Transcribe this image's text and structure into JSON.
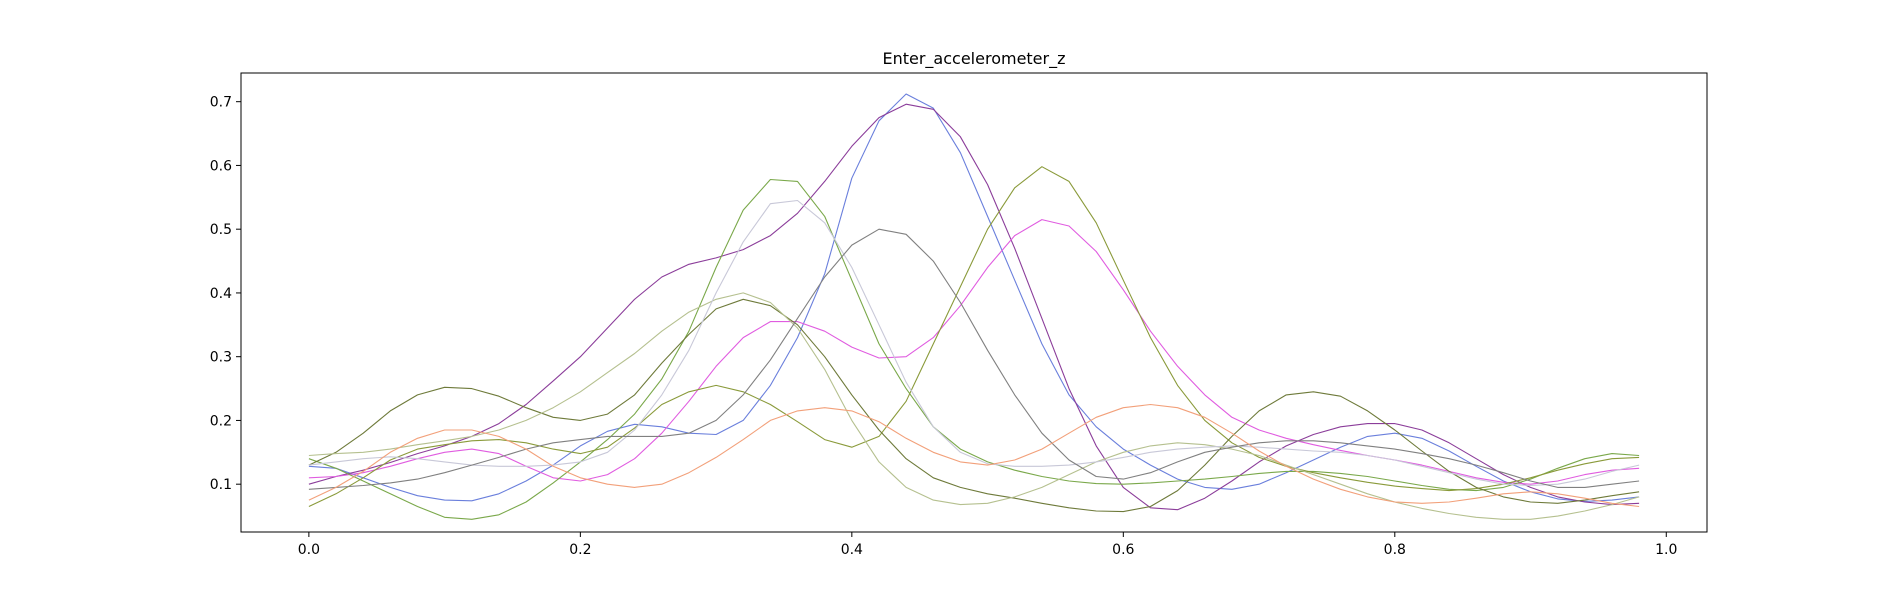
{
  "chart_data": {
    "type": "line",
    "title": "Enter_accelerometer_z",
    "xlabel": "",
    "ylabel": "",
    "xlim": [
      -0.05,
      1.03
    ],
    "ylim": [
      0.025,
      0.745
    ],
    "xticks": [
      0.0,
      0.2,
      0.4,
      0.6,
      0.8,
      1.0
    ],
    "xtick_labels": [
      "0.0",
      "0.2",
      "0.4",
      "0.6",
      "0.8",
      "1.0"
    ],
    "yticks": [
      0.1,
      0.2,
      0.3,
      0.4,
      0.5,
      0.6,
      0.7
    ],
    "ytick_labels": [
      "0.1",
      "0.2",
      "0.3",
      "0.4",
      "0.5",
      "0.6",
      "0.7"
    ],
    "grid": false,
    "legend": "none",
    "x": [
      0.0,
      0.02,
      0.04,
      0.06,
      0.08,
      0.1,
      0.12,
      0.14,
      0.16,
      0.18,
      0.2,
      0.22,
      0.24,
      0.26,
      0.28,
      0.3,
      0.32,
      0.34,
      0.36,
      0.38,
      0.4,
      0.42,
      0.44,
      0.46,
      0.48,
      0.5,
      0.52,
      0.54,
      0.56,
      0.58,
      0.6,
      0.62,
      0.64,
      0.66,
      0.68,
      0.7,
      0.72,
      0.74,
      0.76,
      0.78,
      0.8,
      0.82,
      0.84,
      0.86,
      0.88,
      0.9,
      0.92,
      0.94,
      0.96,
      0.98
    ],
    "series": [
      {
        "color": "#6a7fdc",
        "values": [
          0.128,
          0.125,
          0.11,
          0.095,
          0.082,
          0.075,
          0.074,
          0.085,
          0.105,
          0.13,
          0.16,
          0.183,
          0.194,
          0.19,
          0.18,
          0.178,
          0.2,
          0.255,
          0.33,
          0.43,
          0.58,
          0.67,
          0.712,
          0.69,
          0.62,
          0.52,
          0.42,
          0.32,
          0.24,
          0.19,
          0.155,
          0.13,
          0.108,
          0.095,
          0.092,
          0.1,
          0.118,
          0.138,
          0.158,
          0.175,
          0.18,
          0.172,
          0.152,
          0.128,
          0.105,
          0.088,
          0.077,
          0.073,
          0.075,
          0.08
        ]
      },
      {
        "color": "#8b3d9a",
        "values": [
          0.1,
          0.112,
          0.122,
          0.134,
          0.148,
          0.16,
          0.175,
          0.195,
          0.225,
          0.262,
          0.3,
          0.345,
          0.39,
          0.425,
          0.445,
          0.455,
          0.468,
          0.49,
          0.525,
          0.575,
          0.63,
          0.675,
          0.696,
          0.688,
          0.645,
          0.57,
          0.47,
          0.36,
          0.25,
          0.16,
          0.095,
          0.063,
          0.06,
          0.078,
          0.105,
          0.135,
          0.16,
          0.178,
          0.19,
          0.195,
          0.195,
          0.185,
          0.165,
          0.14,
          0.115,
          0.095,
          0.08,
          0.072,
          0.068,
          0.07
        ]
      },
      {
        "color": "#e05ce0",
        "values": [
          0.11,
          0.112,
          0.118,
          0.128,
          0.14,
          0.15,
          0.155,
          0.148,
          0.128,
          0.11,
          0.105,
          0.115,
          0.14,
          0.18,
          0.23,
          0.285,
          0.33,
          0.355,
          0.355,
          0.34,
          0.315,
          0.298,
          0.3,
          0.33,
          0.38,
          0.44,
          0.49,
          0.515,
          0.505,
          0.465,
          0.405,
          0.34,
          0.285,
          0.24,
          0.205,
          0.185,
          0.172,
          0.162,
          0.153,
          0.145,
          0.138,
          0.13,
          0.12,
          0.11,
          0.103,
          0.1,
          0.105,
          0.115,
          0.122,
          0.125
        ]
      },
      {
        "color": "#7aa84a",
        "values": [
          0.14,
          0.125,
          0.105,
          0.085,
          0.065,
          0.048,
          0.045,
          0.052,
          0.072,
          0.102,
          0.135,
          0.17,
          0.21,
          0.265,
          0.34,
          0.44,
          0.53,
          0.578,
          0.575,
          0.52,
          0.42,
          0.32,
          0.25,
          0.19,
          0.155,
          0.135,
          0.122,
          0.112,
          0.105,
          0.101,
          0.1,
          0.102,
          0.105,
          0.108,
          0.112,
          0.117,
          0.12,
          0.12,
          0.117,
          0.112,
          0.105,
          0.098,
          0.092,
          0.09,
          0.095,
          0.108,
          0.125,
          0.14,
          0.148,
          0.145
        ]
      },
      {
        "color": "#8a9a3a",
        "values": [
          0.065,
          0.085,
          0.11,
          0.138,
          0.155,
          0.162,
          0.168,
          0.17,
          0.165,
          0.155,
          0.148,
          0.158,
          0.188,
          0.225,
          0.245,
          0.255,
          0.245,
          0.225,
          0.198,
          0.17,
          0.158,
          0.175,
          0.23,
          0.32,
          0.41,
          0.5,
          0.565,
          0.598,
          0.575,
          0.51,
          0.42,
          0.33,
          0.255,
          0.2,
          0.165,
          0.142,
          0.128,
          0.118,
          0.11,
          0.103,
          0.097,
          0.093,
          0.09,
          0.093,
          0.1,
          0.11,
          0.122,
          0.132,
          0.14,
          0.142
        ]
      },
      {
        "color": "#6e7a3a",
        "values": [
          0.13,
          0.15,
          0.18,
          0.215,
          0.24,
          0.252,
          0.25,
          0.238,
          0.22,
          0.205,
          0.2,
          0.21,
          0.24,
          0.29,
          0.335,
          0.375,
          0.39,
          0.38,
          0.35,
          0.3,
          0.24,
          0.185,
          0.14,
          0.11,
          0.095,
          0.085,
          0.078,
          0.07,
          0.063,
          0.058,
          0.057,
          0.065,
          0.09,
          0.13,
          0.175,
          0.215,
          0.24,
          0.245,
          0.238,
          0.215,
          0.185,
          0.152,
          0.12,
          0.095,
          0.08,
          0.072,
          0.07,
          0.075,
          0.082,
          0.088
        ]
      },
      {
        "color": "#b5c08f",
        "values": [
          0.145,
          0.148,
          0.15,
          0.155,
          0.162,
          0.168,
          0.175,
          0.185,
          0.2,
          0.22,
          0.245,
          0.275,
          0.305,
          0.34,
          0.37,
          0.39,
          0.4,
          0.385,
          0.345,
          0.28,
          0.2,
          0.135,
          0.095,
          0.075,
          0.068,
          0.07,
          0.08,
          0.095,
          0.115,
          0.135,
          0.15,
          0.16,
          0.165,
          0.162,
          0.155,
          0.145,
          0.13,
          0.115,
          0.1,
          0.085,
          0.072,
          0.062,
          0.054,
          0.048,
          0.045,
          0.045,
          0.05,
          0.058,
          0.068,
          0.08
        ]
      },
      {
        "color": "#c8c8d8",
        "values": [
          0.13,
          0.135,
          0.14,
          0.143,
          0.14,
          0.135,
          0.13,
          0.128,
          0.128,
          0.13,
          0.135,
          0.15,
          0.185,
          0.24,
          0.31,
          0.4,
          0.48,
          0.54,
          0.545,
          0.51,
          0.44,
          0.35,
          0.26,
          0.19,
          0.15,
          0.132,
          0.128,
          0.128,
          0.13,
          0.135,
          0.142,
          0.15,
          0.155,
          0.158,
          0.16,
          0.158,
          0.155,
          0.152,
          0.15,
          0.145,
          0.138,
          0.128,
          0.118,
          0.108,
          0.1,
          0.098,
          0.1,
          0.108,
          0.12,
          0.13
        ]
      },
      {
        "color": "#808080",
        "values": [
          0.092,
          0.095,
          0.098,
          0.102,
          0.108,
          0.118,
          0.13,
          0.142,
          0.155,
          0.165,
          0.17,
          0.175,
          0.175,
          0.175,
          0.18,
          0.2,
          0.24,
          0.295,
          0.36,
          0.425,
          0.475,
          0.5,
          0.492,
          0.45,
          0.385,
          0.31,
          0.24,
          0.18,
          0.138,
          0.112,
          0.108,
          0.118,
          0.135,
          0.15,
          0.158,
          0.165,
          0.168,
          0.168,
          0.165,
          0.16,
          0.155,
          0.148,
          0.14,
          0.13,
          0.118,
          0.105,
          0.095,
          0.095,
          0.1,
          0.105
        ]
      },
      {
        "color": "#f2a07a",
        "values": [
          0.075,
          0.095,
          0.12,
          0.15,
          0.172,
          0.185,
          0.185,
          0.175,
          0.155,
          0.128,
          0.11,
          0.1,
          0.095,
          0.1,
          0.118,
          0.142,
          0.17,
          0.2,
          0.215,
          0.22,
          0.215,
          0.198,
          0.172,
          0.15,
          0.135,
          0.13,
          0.138,
          0.155,
          0.18,
          0.205,
          0.22,
          0.225,
          0.22,
          0.205,
          0.18,
          0.152,
          0.128,
          0.108,
          0.092,
          0.08,
          0.072,
          0.07,
          0.072,
          0.078,
          0.085,
          0.088,
          0.085,
          0.078,
          0.07,
          0.065
        ]
      }
    ]
  }
}
